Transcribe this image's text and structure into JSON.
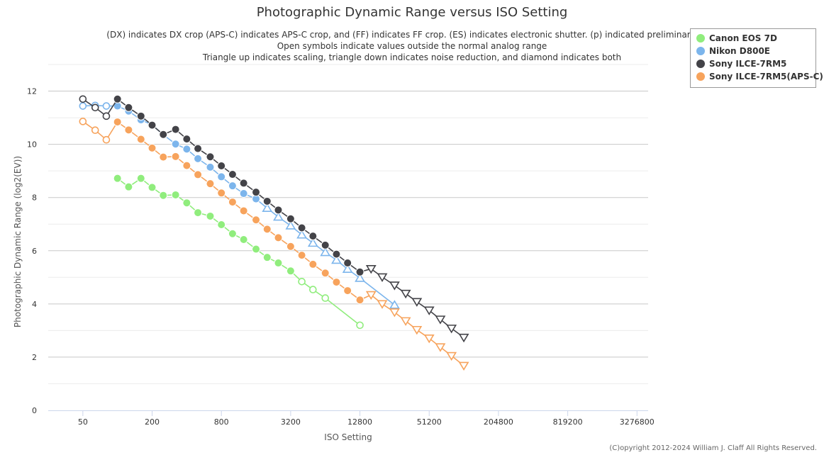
{
  "chart_data": {
    "type": "line",
    "title": "Photographic Dynamic Range versus ISO Setting",
    "subtitles": [
      "(DX) indicates DX crop (APS-C) indicates APS-C crop, and (FF) indicates FF crop. (ES) indicates electronic shutter. (p) indicated preliminary data",
      "Open symbols indicate values outside the normal analog range",
      "Triangle up indicates scaling, triangle down indicates noise reduction, and diamond indicates both"
    ],
    "xlabel": "ISO Setting",
    "ylabel": "Photographic Dynamic Range (log2(EV))",
    "x_scale": "log2",
    "xlim": [
      25,
      4096000
    ],
    "ylim": [
      0,
      13
    ],
    "x_ticks": [
      50,
      200,
      800,
      3200,
      12800,
      51200,
      204800,
      819200,
      3276800
    ],
    "x_tick_labels": [
      "50",
      "200",
      "800",
      "3200",
      "12800",
      "51200",
      "204800",
      "819200",
      "3276800"
    ],
    "y_ticks": [
      0,
      2,
      4,
      6,
      8,
      10,
      12
    ],
    "y_tick_labels": [
      "0",
      "2",
      "4",
      "6",
      "8",
      "10",
      "12"
    ],
    "grid": true,
    "legend_position": "top-right",
    "copyright": "(C)opyright 2012-2024 William J. Claff All Rights Reserved.",
    "series": [
      {
        "name": "Canon EOS 7D",
        "color": "#90ed7d",
        "points": [
          {
            "x": 100,
            "y": 8.72,
            "m": "c"
          },
          {
            "x": 125,
            "y": 8.4,
            "m": "c"
          },
          {
            "x": 160,
            "y": 8.72,
            "m": "c"
          },
          {
            "x": 200,
            "y": 8.38,
            "m": "c"
          },
          {
            "x": 250,
            "y": 8.08,
            "m": "c"
          },
          {
            "x": 320,
            "y": 8.1,
            "m": "c"
          },
          {
            "x": 400,
            "y": 7.8,
            "m": "c"
          },
          {
            "x": 500,
            "y": 7.43,
            "m": "c"
          },
          {
            "x": 640,
            "y": 7.3,
            "m": "c"
          },
          {
            "x": 800,
            "y": 6.98,
            "m": "c"
          },
          {
            "x": 1000,
            "y": 6.64,
            "m": "c"
          },
          {
            "x": 1250,
            "y": 6.42,
            "m": "c"
          },
          {
            "x": 1600,
            "y": 6.06,
            "m": "c"
          },
          {
            "x": 2000,
            "y": 5.75,
            "m": "c"
          },
          {
            "x": 2500,
            "y": 5.54,
            "m": "c"
          },
          {
            "x": 3200,
            "y": 5.24,
            "m": "c"
          },
          {
            "x": 4000,
            "y": 4.84,
            "m": "o"
          },
          {
            "x": 5000,
            "y": 4.54,
            "m": "o"
          },
          {
            "x": 6400,
            "y": 4.22,
            "m": "o"
          },
          {
            "x": 12800,
            "y": 3.2,
            "m": "o"
          }
        ]
      },
      {
        "name": "Nikon D800E",
        "color": "#7cb5ec",
        "points": [
          {
            "x": 50,
            "y": 11.44,
            "m": "o"
          },
          {
            "x": 64,
            "y": 11.46,
            "m": "o"
          },
          {
            "x": 80,
            "y": 11.44,
            "m": "o"
          },
          {
            "x": 100,
            "y": 11.44,
            "m": "c"
          },
          {
            "x": 125,
            "y": 11.25,
            "m": "c"
          },
          {
            "x": 160,
            "y": 10.92,
            "m": "c"
          },
          {
            "x": 200,
            "y": 10.73,
            "m": "c"
          },
          {
            "x": 250,
            "y": 10.36,
            "m": "c"
          },
          {
            "x": 320,
            "y": 10.01,
            "m": "c"
          },
          {
            "x": 400,
            "y": 9.82,
            "m": "c"
          },
          {
            "x": 500,
            "y": 9.46,
            "m": "c"
          },
          {
            "x": 640,
            "y": 9.14,
            "m": "c"
          },
          {
            "x": 800,
            "y": 8.78,
            "m": "c"
          },
          {
            "x": 1000,
            "y": 8.44,
            "m": "c"
          },
          {
            "x": 1250,
            "y": 8.15,
            "m": "c"
          },
          {
            "x": 1600,
            "y": 7.95,
            "m": "c"
          },
          {
            "x": 2000,
            "y": 7.6,
            "m": "tu"
          },
          {
            "x": 2500,
            "y": 7.27,
            "m": "tu"
          },
          {
            "x": 3200,
            "y": 6.94,
            "m": "tu"
          },
          {
            "x": 4000,
            "y": 6.6,
            "m": "tu"
          },
          {
            "x": 5000,
            "y": 6.29,
            "m": "tu"
          },
          {
            "x": 6400,
            "y": 5.94,
            "m": "tu"
          },
          {
            "x": 8000,
            "y": 5.65,
            "m": "tu"
          },
          {
            "x": 10000,
            "y": 5.31,
            "m": "tu"
          },
          {
            "x": 12800,
            "y": 4.97,
            "m": "tu"
          },
          {
            "x": 25600,
            "y": 3.96,
            "m": "tu"
          }
        ]
      },
      {
        "name": "Sony ILCE-7RM5",
        "color": "#434348",
        "points": [
          {
            "x": 50,
            "y": 11.7,
            "m": "o"
          },
          {
            "x": 64,
            "y": 11.38,
            "m": "o"
          },
          {
            "x": 80,
            "y": 11.06,
            "m": "o"
          },
          {
            "x": 100,
            "y": 11.7,
            "m": "c"
          },
          {
            "x": 125,
            "y": 11.38,
            "m": "c"
          },
          {
            "x": 160,
            "y": 11.06,
            "m": "c"
          },
          {
            "x": 200,
            "y": 10.72,
            "m": "c"
          },
          {
            "x": 250,
            "y": 10.37,
            "m": "c"
          },
          {
            "x": 320,
            "y": 10.56,
            "m": "c"
          },
          {
            "x": 400,
            "y": 10.2,
            "m": "c"
          },
          {
            "x": 500,
            "y": 9.84,
            "m": "c"
          },
          {
            "x": 640,
            "y": 9.53,
            "m": "c"
          },
          {
            "x": 800,
            "y": 9.19,
            "m": "c"
          },
          {
            "x": 1000,
            "y": 8.87,
            "m": "c"
          },
          {
            "x": 1250,
            "y": 8.54,
            "m": "c"
          },
          {
            "x": 1600,
            "y": 8.2,
            "m": "c"
          },
          {
            "x": 2000,
            "y": 7.86,
            "m": "c"
          },
          {
            "x": 2500,
            "y": 7.53,
            "m": "c"
          },
          {
            "x": 3200,
            "y": 7.2,
            "m": "c"
          },
          {
            "x": 4000,
            "y": 6.86,
            "m": "c"
          },
          {
            "x": 5000,
            "y": 6.55,
            "m": "c"
          },
          {
            "x": 6400,
            "y": 6.21,
            "m": "c"
          },
          {
            "x": 8000,
            "y": 5.87,
            "m": "c"
          },
          {
            "x": 10000,
            "y": 5.54,
            "m": "c"
          },
          {
            "x": 12800,
            "y": 5.2,
            "m": "c"
          },
          {
            "x": 16000,
            "y": 5.32,
            "m": "td"
          },
          {
            "x": 20000,
            "y": 5.01,
            "m": "td"
          },
          {
            "x": 25600,
            "y": 4.7,
            "m": "td"
          },
          {
            "x": 32000,
            "y": 4.39,
            "m": "td"
          },
          {
            "x": 40000,
            "y": 4.08,
            "m": "td"
          },
          {
            "x": 51200,
            "y": 3.76,
            "m": "td"
          },
          {
            "x": 64000,
            "y": 3.42,
            "m": "td"
          },
          {
            "x": 80000,
            "y": 3.08,
            "m": "td"
          },
          {
            "x": 102400,
            "y": 2.74,
            "m": "td"
          }
        ]
      },
      {
        "name": "Sony ILCE-7RM5(APS-C)",
        "color": "#f7a35c",
        "points": [
          {
            "x": 50,
            "y": 10.86,
            "m": "o"
          },
          {
            "x": 64,
            "y": 10.53,
            "m": "o"
          },
          {
            "x": 80,
            "y": 10.17,
            "m": "o"
          },
          {
            "x": 100,
            "y": 10.84,
            "m": "c"
          },
          {
            "x": 125,
            "y": 10.54,
            "m": "c"
          },
          {
            "x": 160,
            "y": 10.19,
            "m": "c"
          },
          {
            "x": 200,
            "y": 9.86,
            "m": "c"
          },
          {
            "x": 250,
            "y": 9.52,
            "m": "c"
          },
          {
            "x": 320,
            "y": 9.54,
            "m": "c"
          },
          {
            "x": 400,
            "y": 9.2,
            "m": "c"
          },
          {
            "x": 500,
            "y": 8.86,
            "m": "c"
          },
          {
            "x": 640,
            "y": 8.52,
            "m": "c"
          },
          {
            "x": 800,
            "y": 8.17,
            "m": "c"
          },
          {
            "x": 1000,
            "y": 7.83,
            "m": "c"
          },
          {
            "x": 1250,
            "y": 7.5,
            "m": "c"
          },
          {
            "x": 1600,
            "y": 7.16,
            "m": "c"
          },
          {
            "x": 2000,
            "y": 6.81,
            "m": "c"
          },
          {
            "x": 2500,
            "y": 6.49,
            "m": "c"
          },
          {
            "x": 3200,
            "y": 6.16,
            "m": "c"
          },
          {
            "x": 4000,
            "y": 5.83,
            "m": "c"
          },
          {
            "x": 5000,
            "y": 5.49,
            "m": "c"
          },
          {
            "x": 6400,
            "y": 5.16,
            "m": "c"
          },
          {
            "x": 8000,
            "y": 4.82,
            "m": "c"
          },
          {
            "x": 10000,
            "y": 4.5,
            "m": "c"
          },
          {
            "x": 12800,
            "y": 4.15,
            "m": "c"
          },
          {
            "x": 16000,
            "y": 4.34,
            "m": "td"
          },
          {
            "x": 20000,
            "y": 4.0,
            "m": "td"
          },
          {
            "x": 25600,
            "y": 3.69,
            "m": "td"
          },
          {
            "x": 32000,
            "y": 3.36,
            "m": "td"
          },
          {
            "x": 40000,
            "y": 3.03,
            "m": "td"
          },
          {
            "x": 51200,
            "y": 2.71,
            "m": "td"
          },
          {
            "x": 64000,
            "y": 2.38,
            "m": "td"
          },
          {
            "x": 80000,
            "y": 2.05,
            "m": "td"
          },
          {
            "x": 102400,
            "y": 1.68,
            "m": "td"
          }
        ]
      }
    ]
  }
}
